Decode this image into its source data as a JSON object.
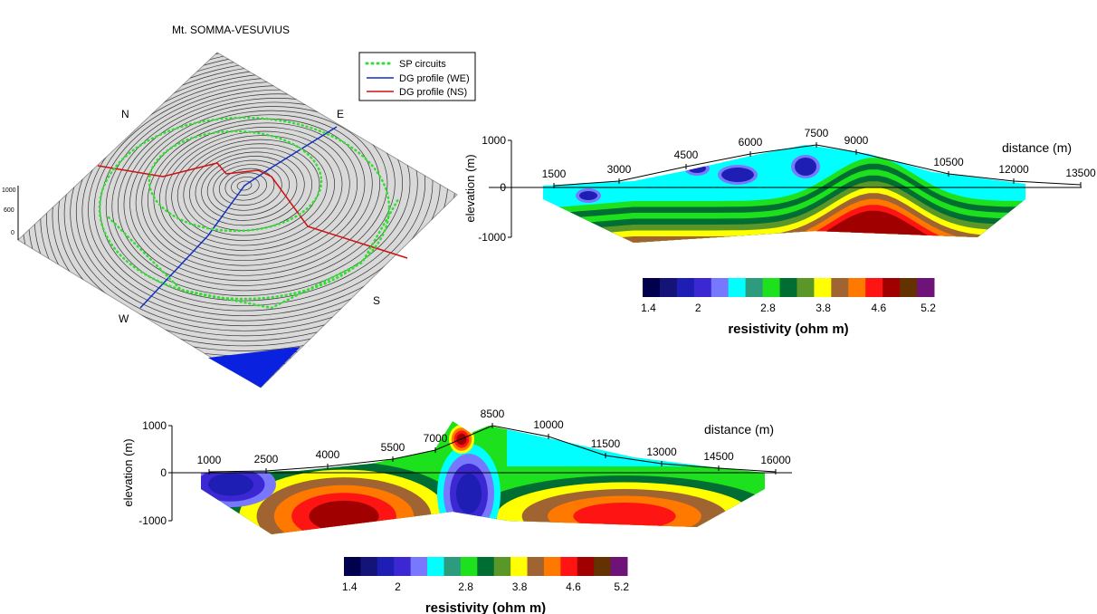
{
  "map": {
    "title": "Mt. SOMMA-VESUVIUS",
    "legend": [
      "SP circuits",
      "DG profile (WE)",
      "DG profile (NS)"
    ],
    "compass": [
      "N",
      "E",
      "S",
      "W"
    ],
    "z_ticks": [
      "1000",
      "600",
      "0"
    ]
  },
  "profile_ns": {
    "distance_label": "distance (m)",
    "elevation_label": "elevation (m)",
    "distance_ticks": [
      1500,
      3000,
      4500,
      6000,
      7500,
      9000,
      10500,
      12000,
      13500
    ],
    "elevation_ticks": [
      "1000",
      "0",
      "-1000"
    ],
    "colorbar": {
      "label": "resistivity (ohm m)",
      "ticks": [
        "1.4",
        "2",
        "2.8",
        "3.8",
        "4.6",
        "5.2"
      ]
    }
  },
  "profile_we": {
    "distance_label": "distance (m)",
    "elevation_label": "elevation (m)",
    "distance_ticks": [
      1000,
      2500,
      4000,
      5500,
      7000,
      8500,
      10000,
      11500,
      13000,
      14500,
      16000
    ],
    "elevation_ticks": [
      "1000",
      "0",
      "-1000"
    ],
    "colorbar": {
      "label": "resistivity (ohm m)",
      "ticks": [
        "1.4",
        "2",
        "2.8",
        "3.8",
        "4.6",
        "5.2"
      ]
    }
  }
}
